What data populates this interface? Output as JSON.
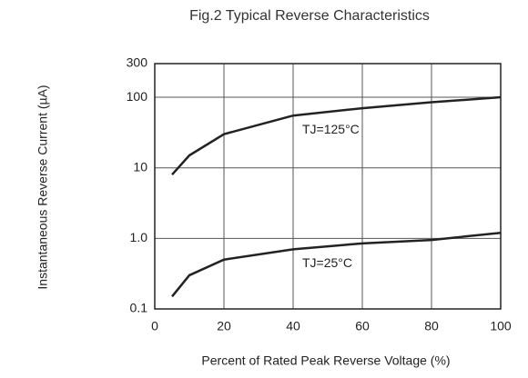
{
  "chart_data": {
    "type": "line",
    "title": "Fig.2  Typical Reverse Characteristics",
    "x_label": "Percent of Rated Peak Reverse Voltage (%)",
    "y_label": "Instantaneous Reverse Current (µA)",
    "x": [
      5,
      10,
      20,
      40,
      60,
      80,
      100
    ],
    "series": [
      {
        "name": "TJ=125°C",
        "color": "#222222",
        "values": [
          8,
          15,
          30,
          55,
          70,
          85,
          100
        ]
      },
      {
        "name": "TJ=25°C",
        "color": "#222222",
        "values": [
          0.15,
          0.3,
          0.5,
          0.7,
          0.85,
          0.95,
          1.2
        ]
      }
    ],
    "xlim": [
      0,
      100
    ],
    "xticks": [
      0,
      20,
      40,
      60,
      80,
      100
    ],
    "ylim": [
      0.1,
      300
    ],
    "yticks": [
      0.1,
      {
        "value": 1,
        "label": "1.0"
      },
      10,
      100,
      300
    ],
    "log_y": true,
    "grid": true
  }
}
